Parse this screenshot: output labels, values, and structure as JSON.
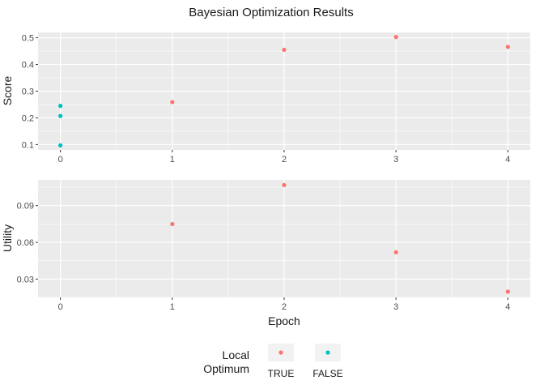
{
  "title": "Bayesian Optimization Results",
  "colors": {
    "true": "#F8766D",
    "false": "#00BFC4",
    "panel": "#EBEBEB"
  },
  "legend": {
    "title_line1": "Local",
    "title_line2": "Optimum",
    "items": [
      {
        "label": "TRUE",
        "color": "#F8766D"
      },
      {
        "label": "FALSE",
        "color": "#00BFC4"
      }
    ]
  },
  "chart_data": [
    {
      "type": "scatter",
      "ylabel": "Score",
      "xlabel": "",
      "xlim": [
        -0.2,
        4.2
      ],
      "ylim": [
        0.08,
        0.52
      ],
      "x_ticks": [
        0,
        1,
        2,
        3,
        4
      ],
      "y_ticks": [
        0.1,
        0.2,
        0.3,
        0.4,
        0.5
      ],
      "y_tick_labels": [
        "0.1",
        "0.2",
        "0.3",
        "0.4",
        "0.5"
      ],
      "series": [
        {
          "name": "TRUE",
          "x": [
            1,
            2,
            3,
            4
          ],
          "y": [
            0.259,
            0.455,
            0.503,
            0.466
          ]
        },
        {
          "name": "FALSE",
          "x": [
            0,
            0,
            0
          ],
          "y": [
            0.245,
            0.207,
            0.097
          ]
        }
      ]
    },
    {
      "type": "scatter",
      "ylabel": "Utility",
      "xlabel": "Epoch",
      "xlim": [
        -0.2,
        4.2
      ],
      "ylim": [
        0.015,
        0.111
      ],
      "x_ticks": [
        0,
        1,
        2,
        3,
        4
      ],
      "y_ticks": [
        0.03,
        0.06,
        0.09
      ],
      "y_tick_labels": [
        "0.03",
        "0.06",
        "0.09"
      ],
      "series": [
        {
          "name": "TRUE",
          "x": [
            1,
            2,
            3,
            4
          ],
          "y": [
            0.0749,
            0.1068,
            0.0519,
            0.0197
          ]
        }
      ]
    }
  ]
}
